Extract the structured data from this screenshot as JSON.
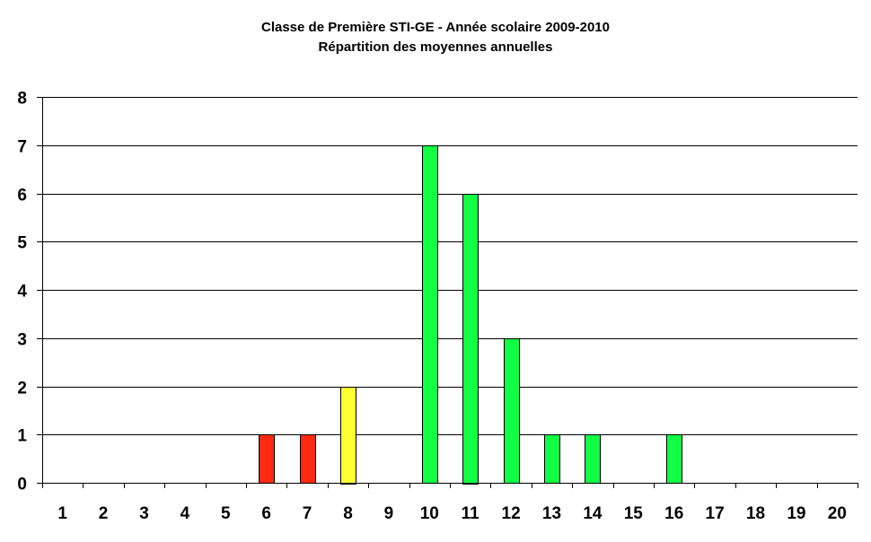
{
  "chart_data": {
    "type": "bar",
    "title": "Classe de Première STI-GE - Année scolaire 2009-2010",
    "subtitle": "Répartition des moyennes annuelles",
    "xlabel": "",
    "ylabel": "",
    "ylim": [
      0,
      8
    ],
    "yticks": [
      "0",
      "1",
      "2",
      "3",
      "4",
      "5",
      "6",
      "7",
      "8"
    ],
    "grid": true,
    "legend": "none",
    "categories": [
      "1",
      "2",
      "3",
      "4",
      "5",
      "6",
      "7",
      "8",
      "9",
      "10",
      "11",
      "12",
      "13",
      "14",
      "15",
      "16",
      "17",
      "18",
      "19",
      "20"
    ],
    "values": [
      0,
      0,
      0,
      0,
      0,
      1,
      1,
      2,
      0,
      7,
      6,
      3,
      1,
      1,
      0,
      1,
      0,
      0,
      0,
      0
    ],
    "colors": {
      "low": "#ff2a10",
      "mid": "#ffff33",
      "high": "#11ff44",
      "stroke": "#000000",
      "grid": "#000000"
    },
    "bar_color_by_category": [
      "low",
      "low",
      "low",
      "low",
      "low",
      "low",
      "low",
      "mid",
      "mid",
      "high",
      "high",
      "high",
      "high",
      "high",
      "high",
      "high",
      "high",
      "high",
      "high",
      "high"
    ]
  }
}
